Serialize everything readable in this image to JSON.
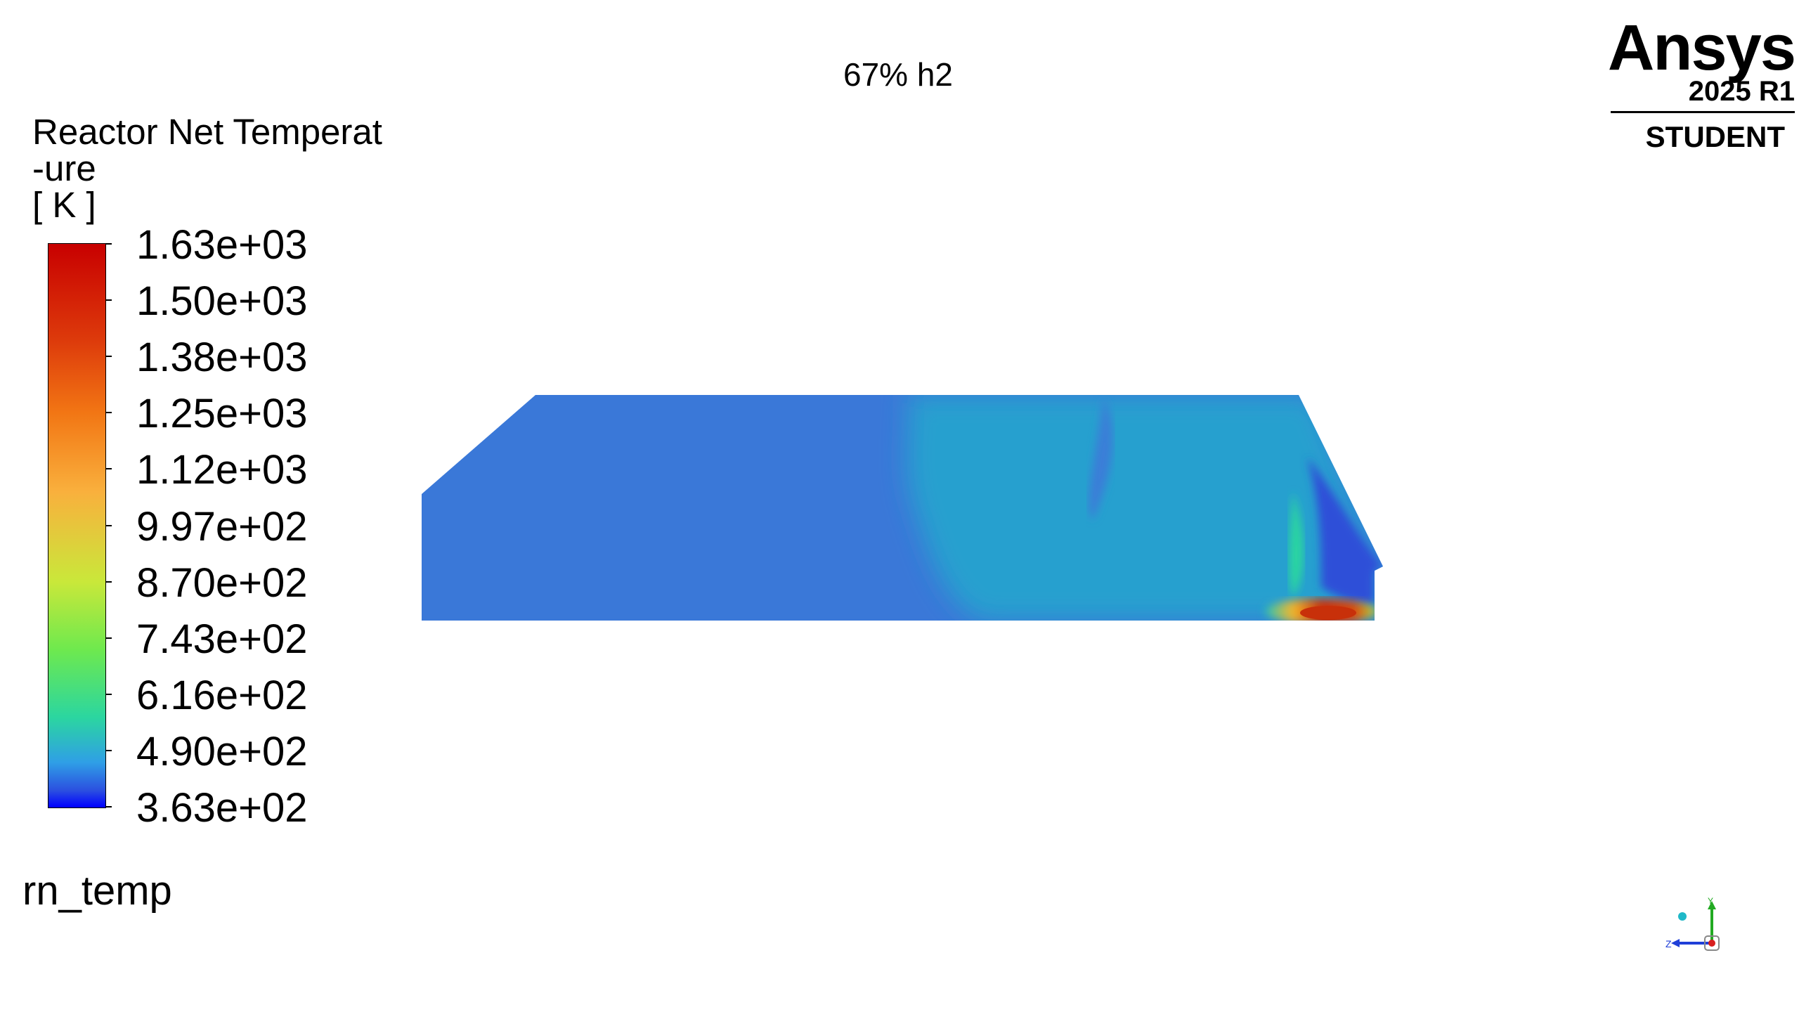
{
  "plot": {
    "title": "67% h2"
  },
  "legend": {
    "title": "Reactor Net Temperat\n-ure\n[ K ]",
    "tick_labels": [
      "1.63e+03",
      "1.50e+03",
      "1.38e+03",
      "1.25e+03",
      "1.12e+03",
      "9.97e+02",
      "8.70e+02",
      "7.43e+02",
      "6.16e+02",
      "4.90e+02",
      "3.63e+02"
    ],
    "colormap_colors": [
      "#c80000",
      "#f27614",
      "#f9b03d",
      "#c9e83a",
      "#6ee94e",
      "#2bd6a0",
      "#2f9fe6",
      "#2b4fe0",
      "#0000ff"
    ]
  },
  "variable_name": "rn_temp",
  "logo": {
    "word": "Ansys",
    "version": "2025 R1",
    "edition": "STUDENT"
  },
  "triad": {
    "axis_labels": [
      "Y",
      "Z"
    ]
  },
  "colors": {
    "domain_base": "#3a78d8",
    "domain_secondary": "#27a0cf",
    "hot_spot": "#c8300a"
  }
}
